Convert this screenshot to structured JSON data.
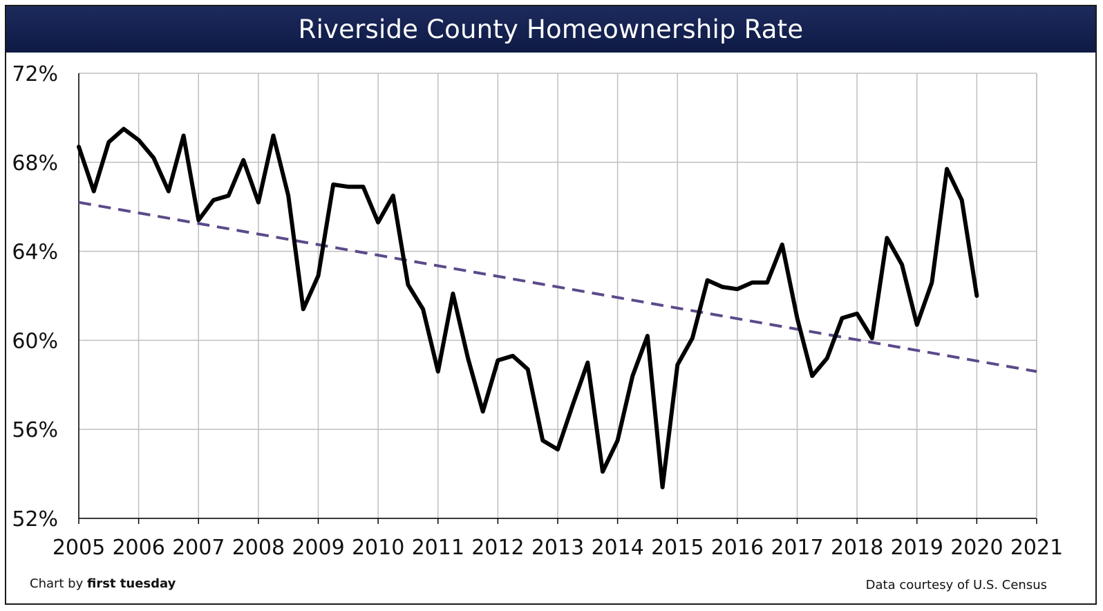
{
  "title": "Riverside County Homeownership Rate",
  "footer": {
    "credit_prefix": "Chart by ",
    "credit_brand": "first tuesday",
    "source": "Data courtesy of U.S. Census"
  },
  "colors": {
    "title_bg": "#14205a",
    "series_line": "#000000",
    "trend_line": "#5b4a8a",
    "grid": "#bfbfbf"
  },
  "chart_data": {
    "type": "line",
    "title": "Riverside County Homeownership Rate",
    "xlabel": "",
    "ylabel": "",
    "xlim": [
      2005,
      2021
    ],
    "ylim": [
      52,
      72
    ],
    "y_ticks": [
      52,
      56,
      60,
      64,
      68,
      72
    ],
    "y_tick_labels": [
      "52%",
      "56%",
      "60%",
      "64%",
      "68%",
      "72%"
    ],
    "x_ticks": [
      2005,
      2006,
      2007,
      2008,
      2009,
      2010,
      2011,
      2012,
      2013,
      2014,
      2015,
      2016,
      2017,
      2018,
      2019,
      2020,
      2021
    ],
    "x_tick_labels": [
      "2005",
      "2006",
      "2007",
      "2008",
      "2009",
      "2010",
      "2011",
      "2012",
      "2013",
      "2014",
      "2015",
      "2016",
      "2017",
      "2018",
      "2019",
      "2020",
      "2021"
    ],
    "grid": true,
    "legend": "none",
    "series": [
      {
        "style": "solid",
        "x": [
          2005.0,
          2005.25,
          2005.5,
          2005.75,
          2006.0,
          2006.25,
          2006.5,
          2006.75,
          2007.0,
          2007.25,
          2007.5,
          2007.75,
          2008.0,
          2008.25,
          2008.5,
          2008.75,
          2009.0,
          2009.25,
          2009.5,
          2009.75,
          2010.0,
          2010.25,
          2010.5,
          2010.75,
          2011.0,
          2011.25,
          2011.5,
          2011.75,
          2012.0,
          2012.25,
          2012.5,
          2012.75,
          2013.0,
          2013.25,
          2013.5,
          2013.75,
          2014.0,
          2014.25,
          2014.5,
          2014.75,
          2015.0,
          2015.25,
          2015.5,
          2015.75,
          2016.0,
          2016.25,
          2016.5,
          2016.75,
          2017.0,
          2017.25,
          2017.5,
          2017.75,
          2018.0,
          2018.25,
          2018.5,
          2018.75,
          2019.0,
          2019.25,
          2019.5,
          2019.75,
          2020.0
        ],
        "values": [
          68.7,
          66.7,
          68.9,
          69.5,
          69.0,
          68.2,
          66.7,
          69.2,
          65.4,
          66.3,
          66.5,
          68.1,
          66.2,
          69.2,
          66.5,
          61.4,
          62.9,
          67.0,
          66.9,
          66.9,
          65.3,
          66.5,
          62.5,
          61.4,
          58.6,
          62.1,
          59.2,
          56.8,
          59.1,
          59.3,
          58.7,
          55.5,
          55.1,
          57.1,
          59.0,
          54.1,
          55.5,
          58.4,
          60.2,
          53.4,
          58.9,
          60.1,
          62.7,
          62.4,
          62.3,
          62.6,
          62.6,
          64.3,
          61.0,
          58.4,
          59.2,
          61.0,
          61.2,
          60.1,
          64.6,
          63.4,
          60.7,
          62.6,
          67.7,
          66.3,
          62.0
        ]
      },
      {
        "style": "dashed trend",
        "x": [
          2005,
          2021
        ],
        "values": [
          66.2,
          58.6
        ]
      }
    ]
  }
}
